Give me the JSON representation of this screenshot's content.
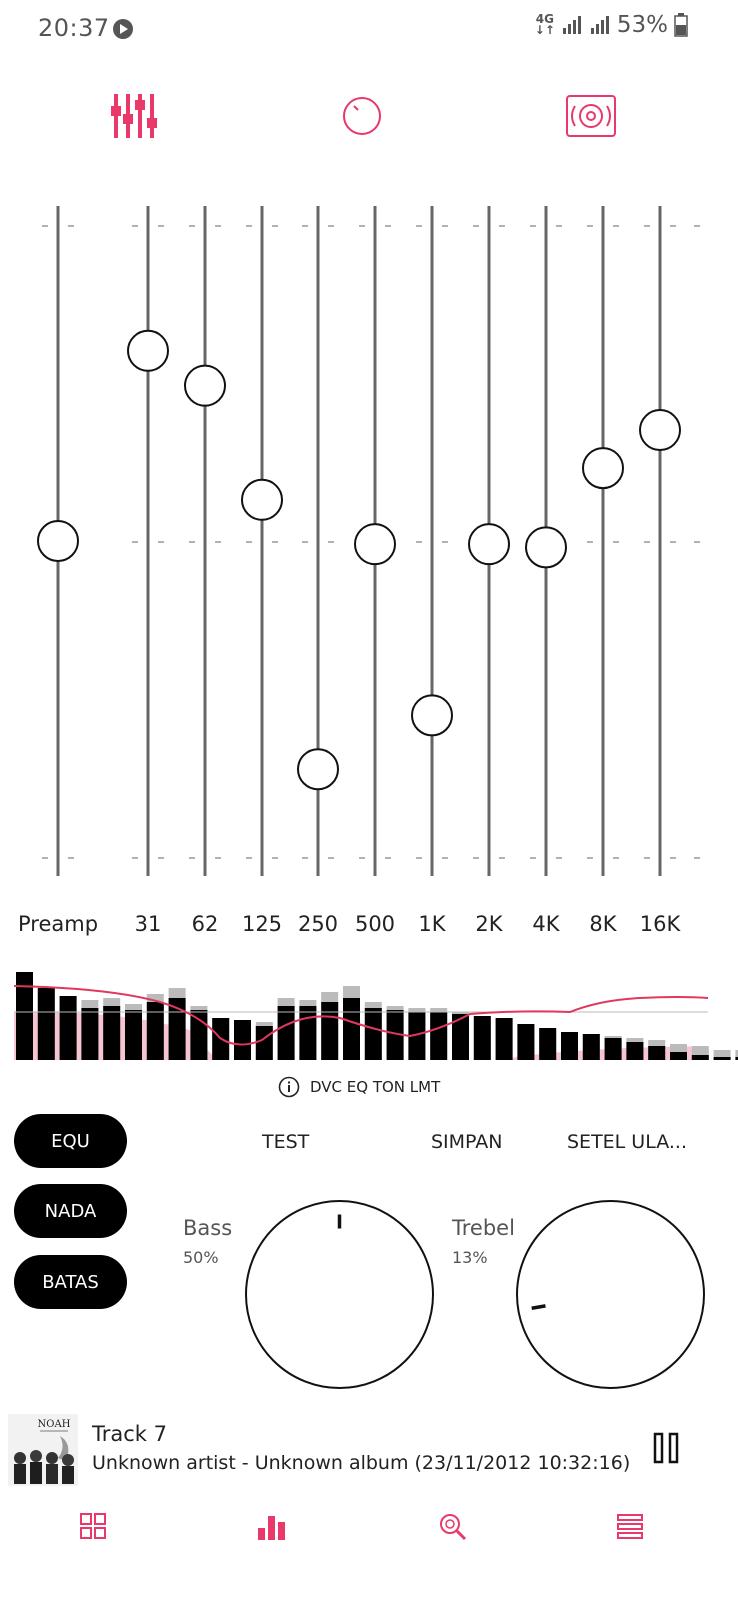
{
  "status_bar": {
    "time": "20:37",
    "network": "4G",
    "battery": "53%"
  },
  "top_tabs": [
    {
      "icon": "equalizer-sliders-icon",
      "active": true
    },
    {
      "icon": "tone-knob-icon",
      "active": false
    },
    {
      "icon": "speaker-icon",
      "active": false
    }
  ],
  "equalizer": {
    "preamp": {
      "label": "Preamp",
      "level": 0.5
    },
    "bands": [
      {
        "label": "31",
        "level": 0.8
      },
      {
        "label": "62",
        "level": 0.745
      },
      {
        "label": "125",
        "level": 0.565
      },
      {
        "label": "250",
        "level": 0.14
      },
      {
        "label": "500",
        "level": 0.495
      },
      {
        "label": "1K",
        "level": 0.225
      },
      {
        "label": "2K",
        "level": 0.495
      },
      {
        "label": "4K",
        "level": 0.49
      },
      {
        "label": "8K",
        "level": 0.615
      },
      {
        "label": "16K",
        "level": 0.675
      }
    ]
  },
  "spectrum": {
    "info_label": "DVC EQ TON LMT",
    "bars": [
      0.88,
      0.72,
      0.64,
      0.52,
      0.54,
      0.5,
      0.58,
      0.62,
      0.5,
      0.42,
      0.4,
      0.34,
      0.54,
      0.54,
      0.58,
      0.62,
      0.52,
      0.5,
      0.48,
      0.48,
      0.46,
      0.44,
      0.42,
      0.36,
      0.32,
      0.28,
      0.26,
      0.22,
      0.18,
      0.14,
      0.08,
      0.05,
      0.03,
      0.03
    ],
    "peaks": [
      0.88,
      0.72,
      0.64,
      0.6,
      0.62,
      0.56,
      0.66,
      0.72,
      0.54,
      0.42,
      0.4,
      0.38,
      0.62,
      0.6,
      0.68,
      0.74,
      0.58,
      0.54,
      0.52,
      0.52,
      0.48,
      0.44,
      0.42,
      0.36,
      0.32,
      0.28,
      0.26,
      0.24,
      0.22,
      0.2,
      0.16,
      0.14,
      0.1,
      0.1
    ],
    "accent_color": "#e0385c"
  },
  "mode_buttons": [
    {
      "label": "EQU"
    },
    {
      "label": "NADA"
    },
    {
      "label": "BATAS"
    }
  ],
  "actions": {
    "test": "TEST",
    "save": "SIMPAN",
    "reset": "SETEL ULA..."
  },
  "bass": {
    "label": "Bass",
    "value": "50%",
    "fraction": 0.5
  },
  "treble": {
    "label": "Trebel",
    "value": "13%",
    "fraction": 0.13
  },
  "player": {
    "track_title": "Track 7",
    "subtitle": "Unknown artist - Unknown album (23/11/2012 10:32:16)",
    "album_text": "NOAH"
  },
  "bottom_nav": [
    {
      "icon": "grid-icon",
      "active": false
    },
    {
      "icon": "bar-chart-icon",
      "active": true
    },
    {
      "icon": "search-icon",
      "active": false
    },
    {
      "icon": "menu-icon",
      "active": false
    }
  ],
  "colors": {
    "accent": "#e8396a",
    "track": "#666666",
    "text": "#222222"
  }
}
